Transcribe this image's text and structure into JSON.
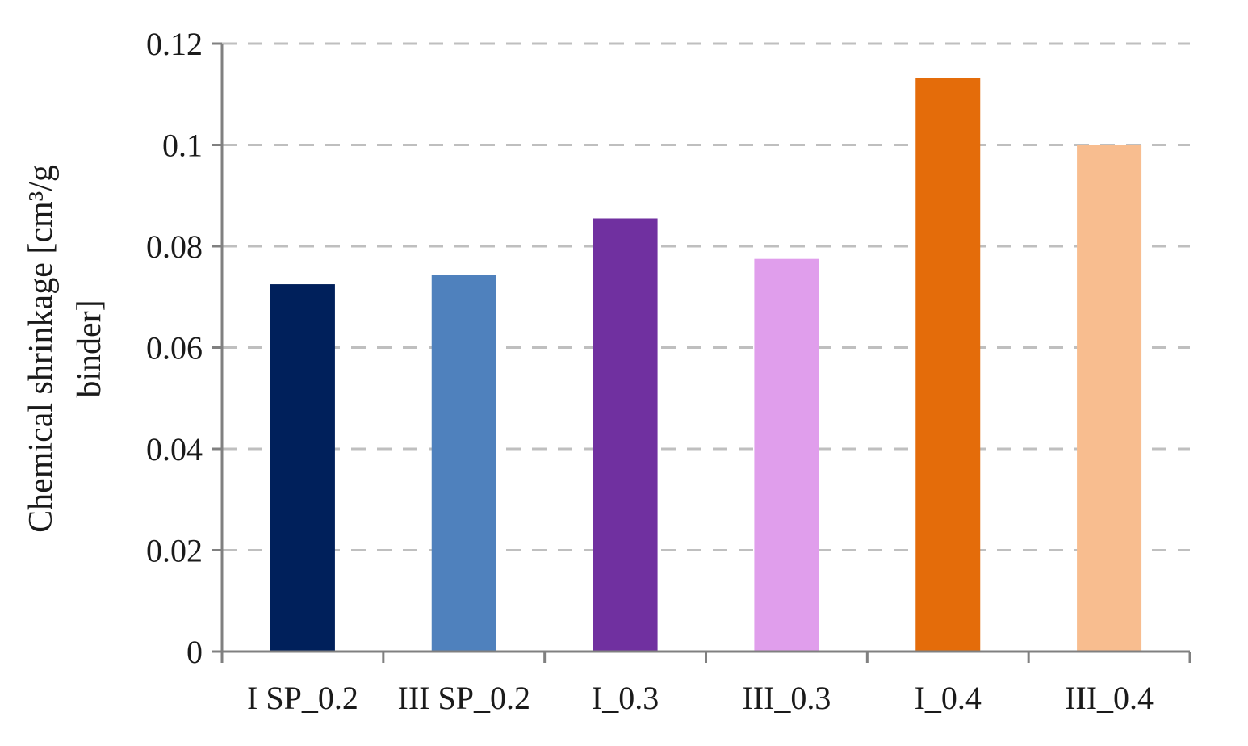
{
  "chart_data": {
    "type": "bar",
    "title": "",
    "xlabel": "",
    "ylabel_lines": [
      "Chemical  shrinkage [cm³/g",
      "binder]"
    ],
    "categories": [
      "I SP_0.2",
      "III SP_0.2",
      "I_0.3",
      "III_0.3",
      "I_0.4",
      "III_0.4"
    ],
    "values": [
      0.0725,
      0.0743,
      0.0855,
      0.0775,
      0.1133,
      0.1
    ],
    "bar_colors": [
      "#00205b",
      "#4f81bd",
      "#7030a0",
      "#e09eec",
      "#e46c0a",
      "#f8bd8f"
    ],
    "ylim": [
      0,
      0.12
    ],
    "yticks": [
      {
        "value": 0,
        "label": "0"
      },
      {
        "value": 0.02,
        "label": "0.02"
      },
      {
        "value": 0.04,
        "label": "0.04"
      },
      {
        "value": 0.06,
        "label": "0.06"
      },
      {
        "value": 0.08,
        "label": "0.08"
      },
      {
        "value": 0.1,
        "label": "0.1"
      },
      {
        "value": 0.12,
        "label": "0.12"
      }
    ],
    "grid": true,
    "grid_style": "dashed",
    "legend": false
  }
}
